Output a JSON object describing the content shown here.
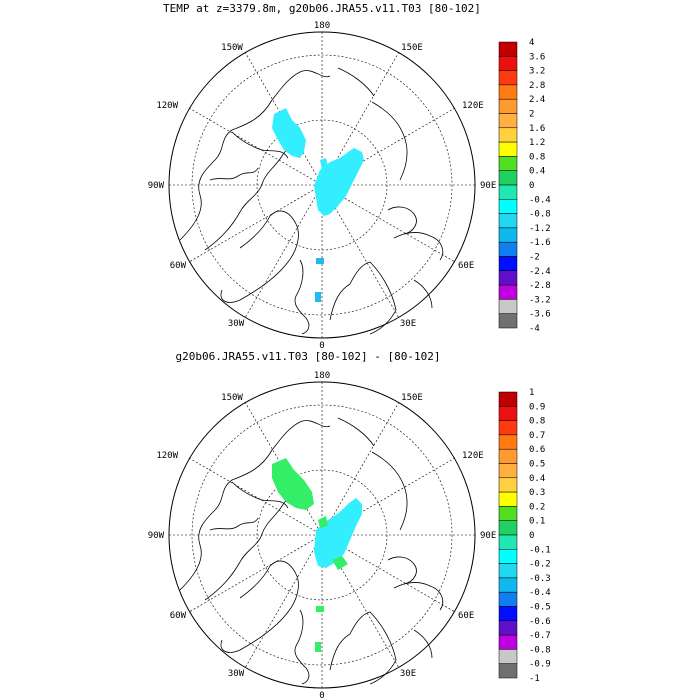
{
  "panels": [
    {
      "title": "TEMP at z=3379.8m, g20b06.JRA55.v11.T03 [80-102]",
      "lon_labels": {
        "top": "180",
        "bottom": "0",
        "left": "90W",
        "right": "90E",
        "upper_left_1": "150W",
        "upper_left_2": "120W",
        "upper_right_1": "150E",
        "upper_right_2": "120E",
        "lower_left_1": "60W",
        "lower_left_2": "30W",
        "lower_right_1": "60E",
        "lower_right_2": "30E"
      },
      "colorbar": {
        "labels": [
          "4",
          "3.6",
          "3.2",
          "2.8",
          "2.4",
          "2",
          "1.6",
          "1.2",
          "0.8",
          "0.4",
          "0",
          "-0.4",
          "-0.8",
          "-1.2",
          "-1.6",
          "-2",
          "-2.4",
          "-2.8",
          "-3.2",
          "-3.6",
          "-4"
        ],
        "colors": [
          "#c00000",
          "#ee1010",
          "#ff3a10",
          "#ff7a10",
          "#ff9a30",
          "#ffb040",
          "#ffd040",
          "#ffff00",
          "#50e020",
          "#20d060",
          "#20e8b0",
          "#00ffff",
          "#20d8f0",
          "#10b8f0",
          "#1080f0",
          "#0010ff",
          "#6010c8",
          "#c000e0",
          "#c8c8c8",
          "#707070"
        ]
      },
      "field_colors": {
        "main": "#33eeff",
        "small": "#22bbee"
      }
    },
    {
      "title": "g20b06.JRA55.v11.T03 [80-102] -  [80-102]",
      "lon_labels": {
        "top": "180",
        "bottom": "0",
        "left": "90W",
        "right": "90E",
        "upper_left_1": "150W",
        "upper_left_2": "120W",
        "upper_right_1": "150E",
        "upper_right_2": "120E",
        "lower_left_1": "60W",
        "lower_left_2": "30W",
        "lower_right_1": "60E",
        "lower_right_2": "30E"
      },
      "colorbar": {
        "labels": [
          "1",
          "0.9",
          "0.8",
          "0.7",
          "0.6",
          "0.5",
          "0.4",
          "0.3",
          "0.2",
          "0.1",
          "0",
          "-0.1",
          "-0.2",
          "-0.3",
          "-0.4",
          "-0.5",
          "-0.6",
          "-0.7",
          "-0.8",
          "-0.9",
          "-1"
        ],
        "colors": [
          "#c00000",
          "#ee1010",
          "#ff3a10",
          "#ff7a10",
          "#ff9a30",
          "#ffb040",
          "#ffd040",
          "#ffff00",
          "#50e020",
          "#20d060",
          "#20e8b0",
          "#00ffff",
          "#20d8f0",
          "#10b8f0",
          "#1080f0",
          "#0010ff",
          "#6010c8",
          "#c000e0",
          "#c8c8c8",
          "#707070"
        ]
      },
      "field_colors": {
        "main": "#33ee66",
        "secondary": "#33eeff"
      }
    }
  ]
}
